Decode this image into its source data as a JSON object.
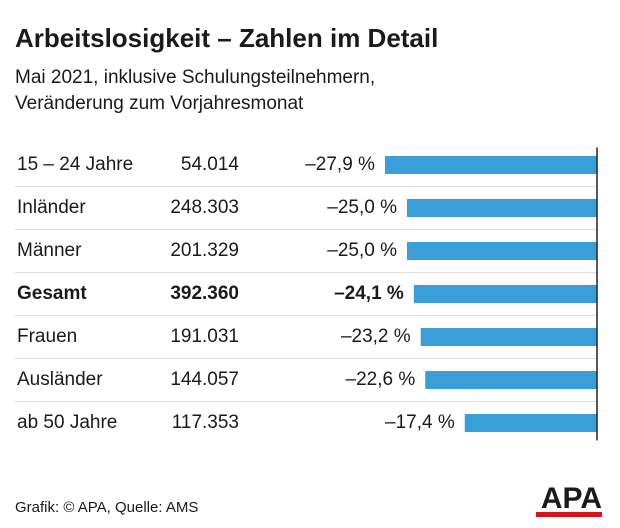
{
  "chart_data": {
    "type": "bar",
    "title": "Arbeitslosigkeit – Zahlen im Detail",
    "subtitle": [
      "Mai 2021, inklusive Schulungsteilnehmern,",
      "Veränderung zum Vorjahresmonat"
    ],
    "categories": [
      "15 – 24 Jahre",
      "Inländer",
      "Männer",
      "Gesamt",
      "Frauen",
      "Ausländer",
      "ab 50 Jahre"
    ],
    "totals": [
      "54.014",
      "248.303",
      "201.329",
      "392.360",
      "191.031",
      "144.057",
      "117.353"
    ],
    "values": [
      -27.9,
      -25.0,
      -25.0,
      -24.1,
      -23.2,
      -22.6,
      -17.4
    ],
    "value_labels": [
      "–27,9 %",
      "–25,0 %",
      "–25,0 %",
      "–24,1 %",
      "–23,2 %",
      "–22,6 %",
      "–17,4 %"
    ],
    "highlight": 3,
    "color": "#3a9fd8",
    "xlim": [
      -30,
      0
    ],
    "source": "Grafik: © APA, Quelle: AMS",
    "logo": "APA"
  }
}
